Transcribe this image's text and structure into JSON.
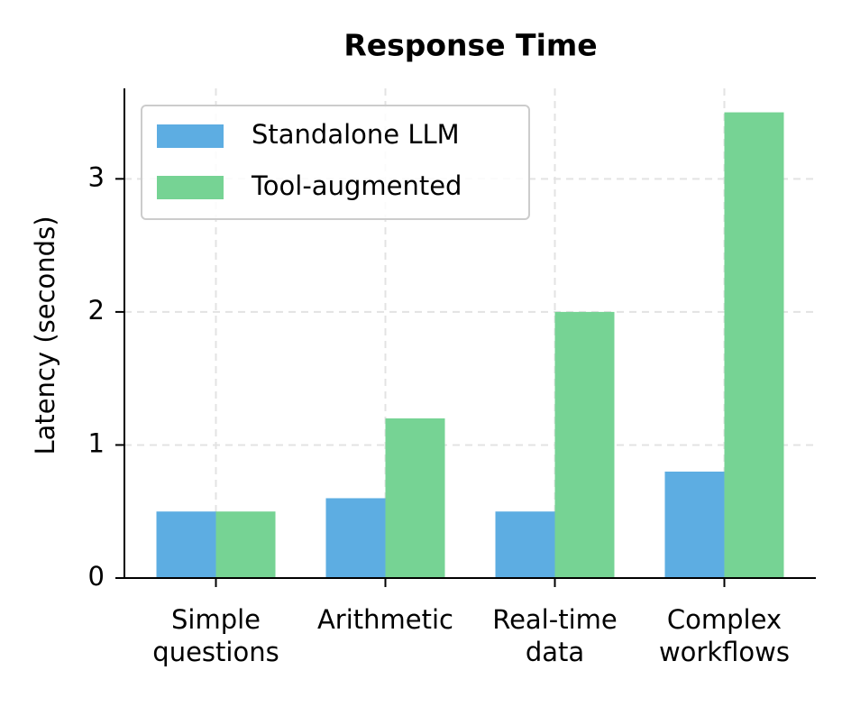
{
  "chart_data": {
    "type": "bar",
    "title": "Response Time",
    "y_label": "Latency (seconds)",
    "categories": [
      "Simple\nquestions",
      "Arithmetic",
      "Real-time\ndata",
      "Complex\nworkflows"
    ],
    "series": [
      {
        "name": "Standalone LLM",
        "color": "#5dade2",
        "values": [
          0.5,
          0.6,
          0.5,
          0.8
        ]
      },
      {
        "name": "Tool-augmented",
        "color": "#76d394",
        "values": [
          0.5,
          1.2,
          2.0,
          3.5
        ]
      }
    ],
    "ylim": [
      0,
      3.68
    ],
    "yticks": [
      0,
      1,
      2,
      3
    ],
    "grid": true,
    "legend": "upper left"
  }
}
